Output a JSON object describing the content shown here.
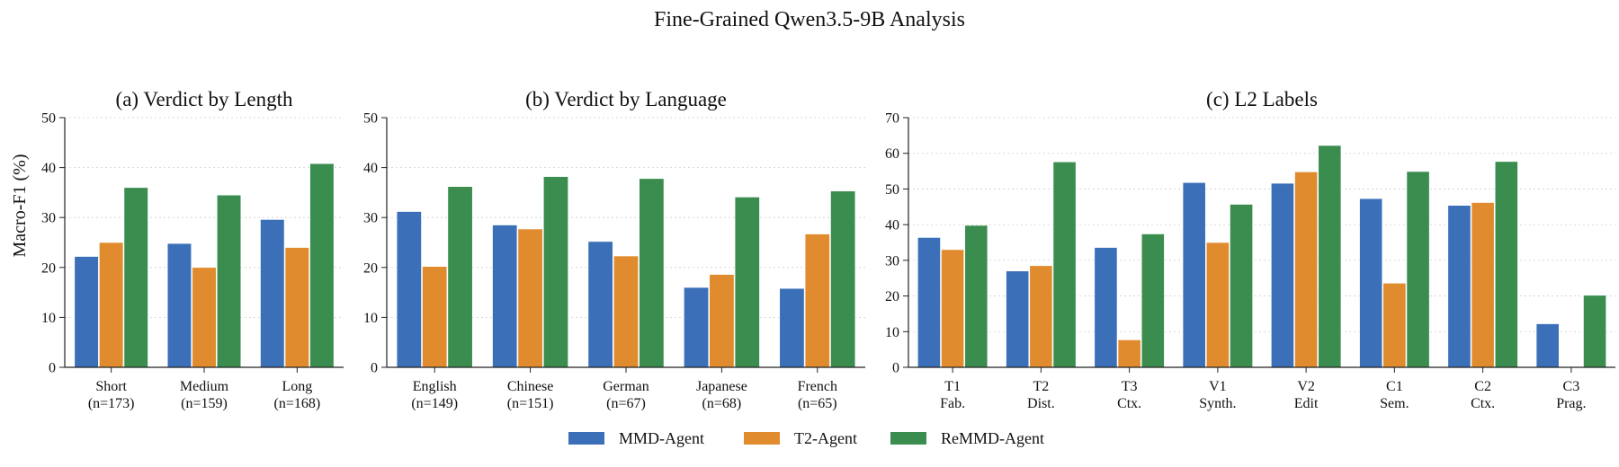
{
  "figure": {
    "title": "Fine-Grained Qwen3.5-9B Analysis",
    "ylabel": "Macro-F1 (%)",
    "legend": {
      "placement": "bottom-center",
      "entries": [
        {
          "name": "MMD-Agent",
          "color": "#3b6fb8"
        },
        {
          "name": "T2-Agent",
          "color": "#e08c2e"
        },
        {
          "name": "ReMMD-Agent",
          "color": "#3b8d4f"
        }
      ]
    }
  },
  "chart_data": [
    {
      "type": "bar",
      "title": "(a) Verdict by Length",
      "categories": [
        [
          "Short",
          "(n=173)"
        ],
        [
          "Medium",
          "(n=159)"
        ],
        [
          "Long",
          "(n=168)"
        ]
      ],
      "ylim": [
        0,
        50
      ],
      "yticks": [
        0,
        10,
        20,
        30,
        40,
        50
      ],
      "grid": true,
      "series": [
        {
          "name": "MMD-Agent",
          "color": "#3b6fb8",
          "values": [
            22.2,
            24.8,
            29.6
          ]
        },
        {
          "name": "T2-Agent",
          "color": "#e08c2e",
          "values": [
            25.0,
            20.0,
            24.0
          ]
        },
        {
          "name": "ReMMD-Agent",
          "color": "#3b8d4f",
          "values": [
            36.0,
            34.5,
            40.8
          ]
        }
      ]
    },
    {
      "type": "bar",
      "title": "(b) Verdict by Language",
      "categories": [
        [
          "English",
          "(n=149)"
        ],
        [
          "Chinese",
          "(n=151)"
        ],
        [
          "German",
          "(n=67)"
        ],
        [
          "Japanese",
          "(n=68)"
        ],
        [
          "French",
          "(n=65)"
        ]
      ],
      "ylim": [
        0,
        50
      ],
      "yticks": [
        0,
        10,
        20,
        30,
        40,
        50
      ],
      "grid": true,
      "series": [
        {
          "name": "MMD-Agent",
          "color": "#3b6fb8",
          "values": [
            31.2,
            28.5,
            25.2,
            16.0,
            15.8
          ]
        },
        {
          "name": "T2-Agent",
          "color": "#e08c2e",
          "values": [
            20.2,
            27.7,
            22.3,
            18.6,
            26.7
          ]
        },
        {
          "name": "ReMMD-Agent",
          "color": "#3b8d4f",
          "values": [
            36.2,
            38.2,
            37.8,
            34.1,
            35.3
          ]
        }
      ]
    },
    {
      "type": "bar",
      "title": "(c) L2 Labels",
      "categories": [
        [
          "T1",
          "Fab."
        ],
        [
          "T2",
          "Dist."
        ],
        [
          "T3",
          "Ctx."
        ],
        [
          "V1",
          "Synth."
        ],
        [
          "V2",
          "Edit"
        ],
        [
          "C1",
          "Sem."
        ],
        [
          "C2",
          "Ctx."
        ],
        [
          "C3",
          "Prag."
        ]
      ],
      "ylim": [
        0,
        70
      ],
      "yticks": [
        0,
        10,
        20,
        30,
        40,
        50,
        60,
        70
      ],
      "grid": true,
      "series": [
        {
          "name": "MMD-Agent",
          "color": "#3b6fb8",
          "values": [
            36.4,
            27.0,
            33.6,
            51.8,
            51.6,
            47.3,
            45.4,
            12.2
          ]
        },
        {
          "name": "T2-Agent",
          "color": "#e08c2e",
          "values": [
            33.0,
            28.5,
            7.7,
            35.0,
            54.8,
            23.6,
            46.2,
            0
          ]
        },
        {
          "name": "ReMMD-Agent",
          "color": "#3b8d4f",
          "values": [
            39.8,
            57.6,
            37.4,
            45.7,
            62.2,
            54.9,
            57.7,
            20.2
          ]
        }
      ]
    }
  ]
}
